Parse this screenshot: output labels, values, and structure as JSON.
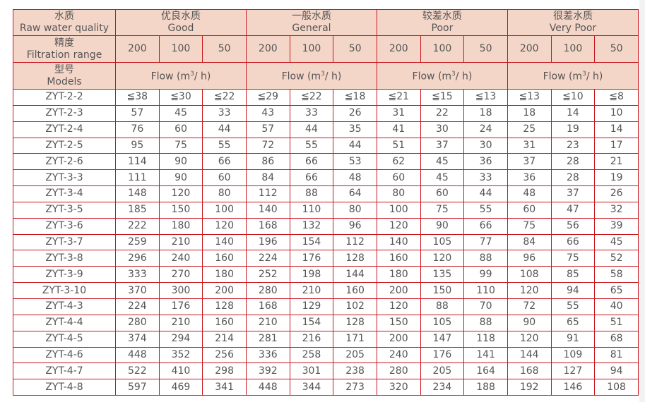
{
  "header": {
    "quality_cn": "水质",
    "quality_en": "Raw water quality",
    "range_cn": "精度",
    "range_en": "Filtration range",
    "models_cn": "型号",
    "models_en": "Models",
    "groups": [
      {
        "cn": "优良水质",
        "en": "Good"
      },
      {
        "cn": "一般水质",
        "en": "General"
      },
      {
        "cn": "较差水质",
        "en": "Poor"
      },
      {
        "cn": "很差水质",
        "en": "Very Poor"
      }
    ],
    "ranges": [
      "200",
      "100",
      "50"
    ],
    "flow_label": "Flow (m",
    "flow_sup": "3",
    "flow_suffix": "/ h)"
  },
  "colors": {
    "border": "#c8161e",
    "header_bg": "#f4d6c8",
    "text": "#555555"
  },
  "rows": [
    [
      "ZYT-2-2",
      "≦38",
      "≦30",
      "≦22",
      "≦29",
      "≦22",
      "≦18",
      "≦21",
      "≦15",
      "≦13",
      "≦13",
      "≦10",
      "≦8"
    ],
    [
      "ZYT-2-3",
      "57",
      "45",
      "33",
      "43",
      "33",
      "26",
      "31",
      "22",
      "18",
      "18",
      "14",
      "10"
    ],
    [
      "ZYT-2-4",
      "76",
      "60",
      "44",
      "57",
      "44",
      "35",
      "41",
      "30",
      "24",
      "25",
      "19",
      "14"
    ],
    [
      "ZYT-2-5",
      "95",
      "75",
      "55",
      "72",
      "55",
      "44",
      "51",
      "37",
      "30",
      "31",
      "23",
      "17"
    ],
    [
      "ZYT-2-6",
      "114",
      "90",
      "66",
      "86",
      "66",
      "53",
      "62",
      "45",
      "36",
      "37",
      "28",
      "21"
    ],
    [
      "ZYT-3-3",
      "111",
      "90",
      "60",
      "84",
      "66",
      "48",
      "60",
      "45",
      "33",
      "36",
      "28",
      "19"
    ],
    [
      "ZYT-3-4",
      "148",
      "120",
      "80",
      "112",
      "88",
      "64",
      "80",
      "60",
      "44",
      "48",
      "37",
      "26"
    ],
    [
      "ZYT-3-5",
      "185",
      "150",
      "100",
      "140",
      "110",
      "80",
      "100",
      "75",
      "55",
      "60",
      "47",
      "32"
    ],
    [
      "ZYT-3-6",
      "222",
      "180",
      "120",
      "168",
      "132",
      "96",
      "120",
      "90",
      "66",
      "75",
      "56",
      "39"
    ],
    [
      "ZYT-3-7",
      "259",
      "210",
      "140",
      "196",
      "154",
      "112",
      "140",
      "105",
      "77",
      "84",
      "66",
      "45"
    ],
    [
      "ZYT-3-8",
      "296",
      "240",
      "160",
      "224",
      "176",
      "128",
      "160",
      "120",
      "88",
      "96",
      "75",
      "52"
    ],
    [
      "ZYT-3-9",
      "333",
      "270",
      "180",
      "252",
      "198",
      "144",
      "180",
      "135",
      "99",
      "108",
      "85",
      "58"
    ],
    [
      "ZYT-3-10",
      "370",
      "300",
      "200",
      "280",
      "210",
      "160",
      "200",
      "150",
      "110",
      "120",
      "94",
      "65"
    ],
    [
      "ZYT-4-3",
      "224",
      "176",
      "128",
      "168",
      "129",
      "102",
      "120",
      "88",
      "70",
      "72",
      "55",
      "40"
    ],
    [
      "ZYT-4-4",
      "280",
      "210",
      "160",
      "210",
      "154",
      "128",
      "150",
      "105",
      "88",
      "90",
      "65",
      "51"
    ],
    [
      "ZYT-4-5",
      "374",
      "294",
      "214",
      "281",
      "216",
      "171",
      "200",
      "147",
      "118",
      "120",
      "91",
      "68"
    ],
    [
      "ZYT-4-6",
      "448",
      "352",
      "256",
      "336",
      "258",
      "205",
      "240",
      "176",
      "141",
      "144",
      "109",
      "81"
    ],
    [
      "ZYT-4-7",
      "522",
      "410",
      "298",
      "392",
      "301",
      "238",
      "280",
      "205",
      "164",
      "168",
      "127",
      "94"
    ],
    [
      "ZYT-4-8",
      "597",
      "469",
      "341",
      "448",
      "344",
      "273",
      "320",
      "234",
      "188",
      "192",
      "146",
      "108"
    ]
  ]
}
